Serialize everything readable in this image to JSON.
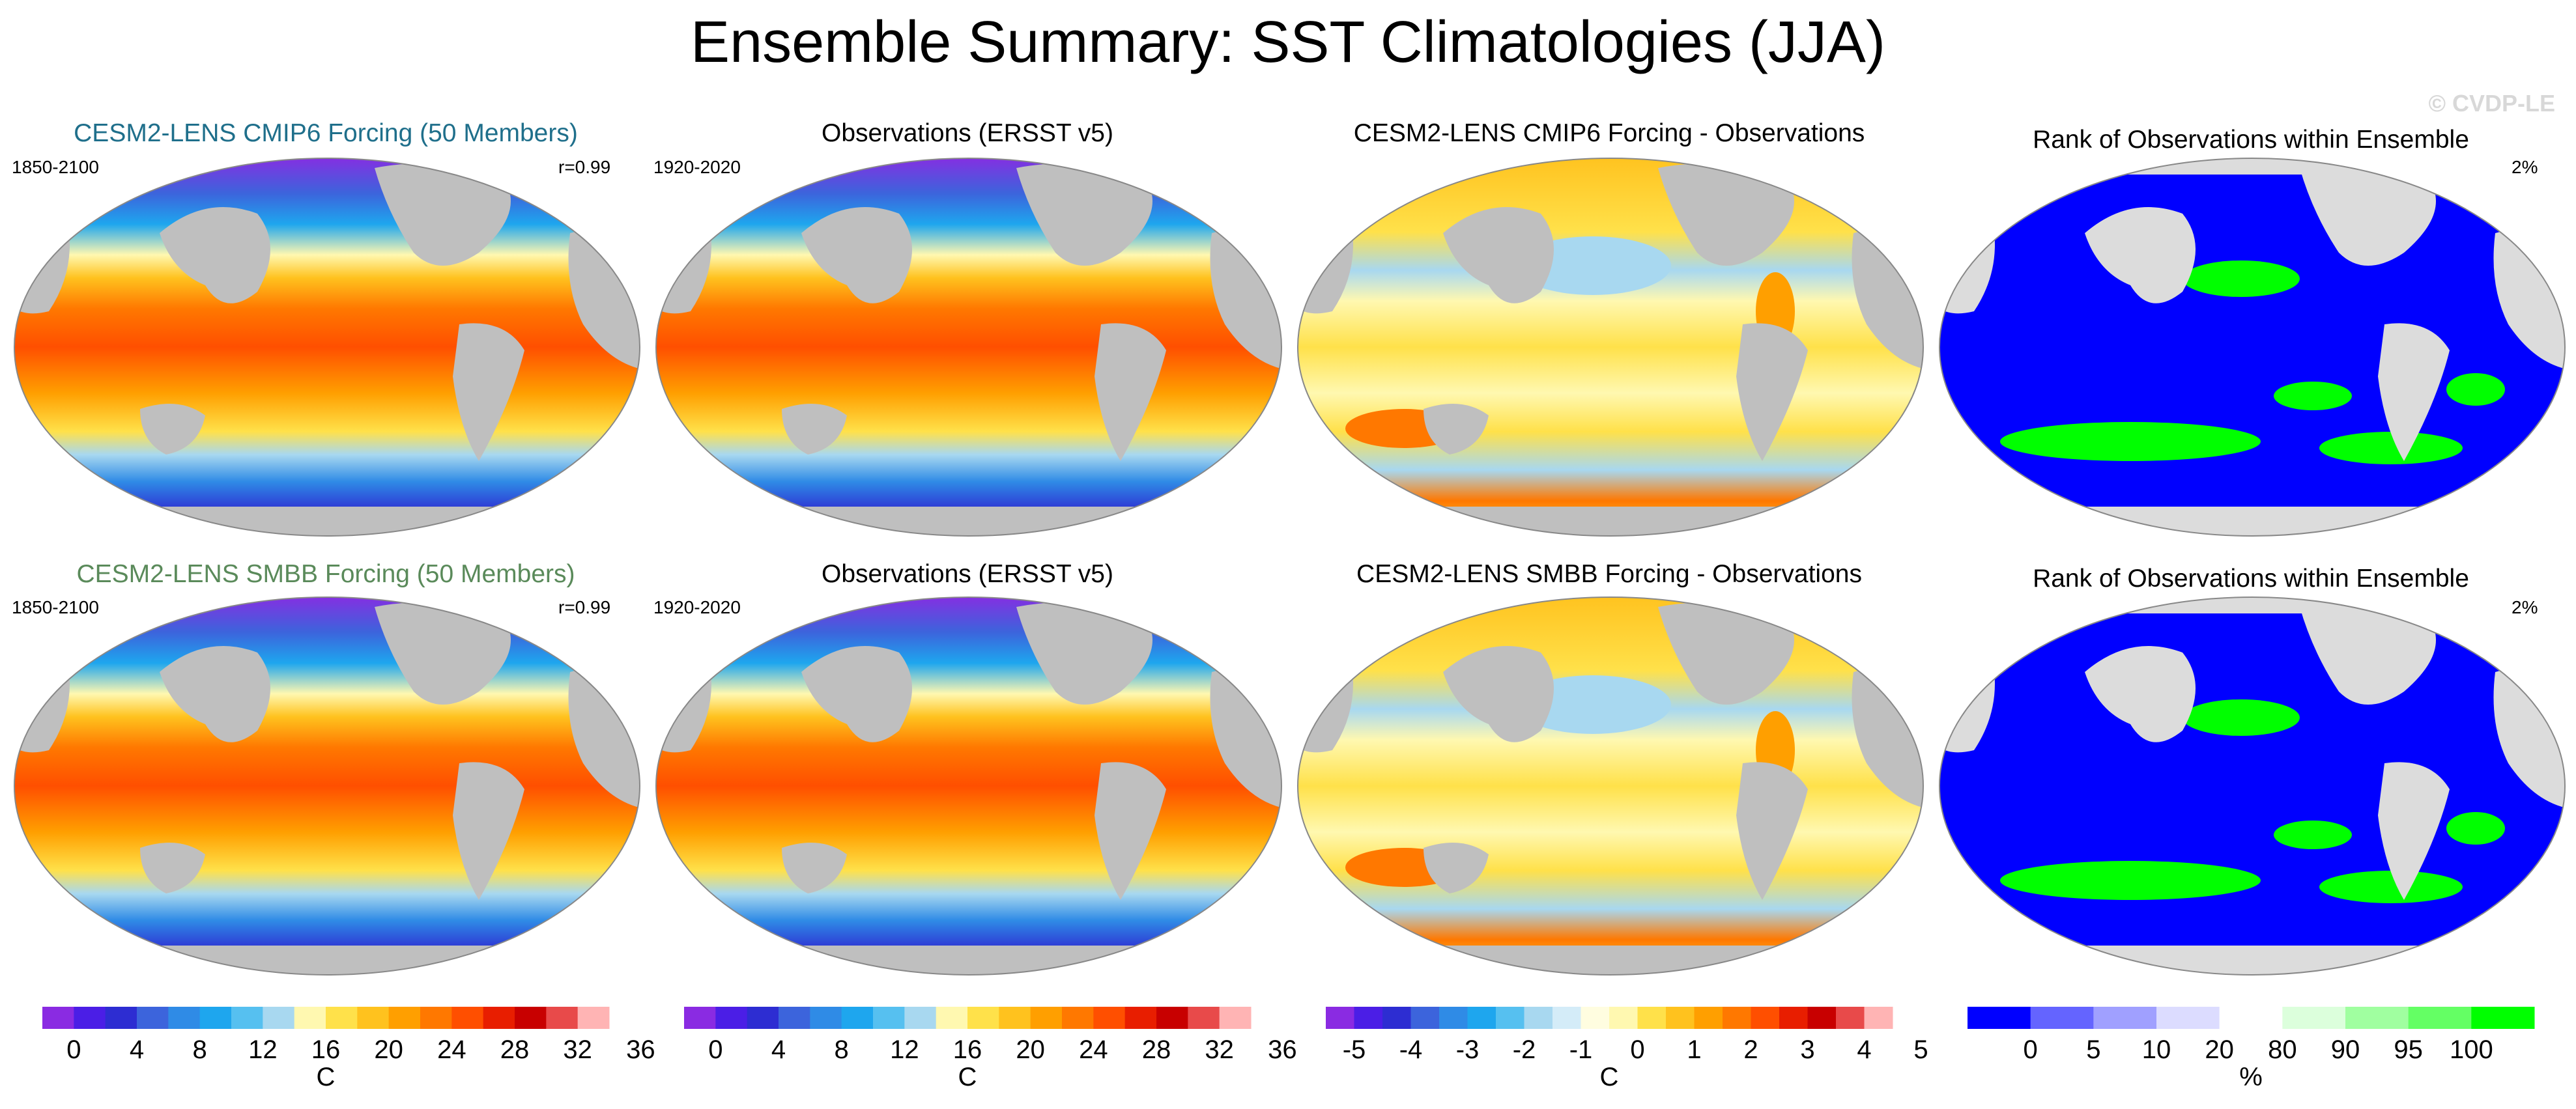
{
  "figure": {
    "title": "Ensemble Summary: SST Climatologies (JJA)",
    "watermark": "© CVDP-LE"
  },
  "colors": {
    "sst": [
      "#8a2be2",
      "#4b1ee6",
      "#2d2dd2",
      "#3c64dc",
      "#2f8be6",
      "#1ea6ee",
      "#56c0f0",
      "#a8d8f0",
      "#fff8b0",
      "#ffe14a",
      "#ffc21e",
      "#ff9f00",
      "#ff7800",
      "#ff4f00",
      "#e81e00",
      "#c80000",
      "#e84a4a",
      "#ffb4b4"
    ],
    "diff": [
      "#8a2be2",
      "#4b1ee6",
      "#2d2dd2",
      "#3c64dc",
      "#2f8be6",
      "#1ea6ee",
      "#56c0f0",
      "#a8d8f0",
      "#d4ecf8",
      "#fffde0",
      "#fff8b0",
      "#ffe14a",
      "#ffc21e",
      "#ff9f00",
      "#ff7800",
      "#ff4f00",
      "#e81e00",
      "#c80000",
      "#e84a4a",
      "#ffb4b4"
    ],
    "rank": [
      "#0000ff",
      "#6464ff",
      "#a0a0ff",
      "#dcdcff",
      "#ffffff",
      "#dcffdc",
      "#a0ffa0",
      "#64ff64",
      "#00ff00"
    ],
    "land": "#bfbfbf",
    "land_light": "#dcdcdc",
    "title_cmip6": "#1f6f8b",
    "title_smbb": "#5a8a5a"
  },
  "rows": [
    {
      "model_title": "CESM2-LENS CMIP6 Forcing (50 Members)",
      "model_years": "1850-2100",
      "pattern_corr": "r=0.99",
      "obs_title": "Observations (ERSST v5)",
      "obs_years": "1920-2020",
      "diff_title": "CESM2-LENS CMIP6 Forcing - Observations",
      "rank_title": "Rank of Observations within Ensemble",
      "rank_pct": "2%"
    },
    {
      "model_title": "CESM2-LENS SMBB Forcing (50 Members)",
      "model_years": "1850-2100",
      "pattern_corr": "r=0.99",
      "obs_title": "Observations (ERSST v5)",
      "obs_years": "1920-2020",
      "diff_title": "CESM2-LENS SMBB Forcing - Observations",
      "rank_title": "Rank of Observations within Ensemble",
      "rank_pct": "2%"
    }
  ],
  "chart_data": [
    {
      "type": "heatmap",
      "name": "model_climatology_colorbar",
      "variable": "SST climatology (JJA)",
      "units": "C",
      "levels": [
        -2,
        0,
        2,
        4,
        6,
        8,
        10,
        12,
        14,
        16,
        18,
        20,
        22,
        24,
        26,
        28,
        30,
        32,
        34,
        36
      ],
      "tick_labels": [
        "0",
        "4",
        "8",
        "12",
        "16",
        "20",
        "24",
        "28",
        "32",
        "36"
      ],
      "tick_values": [
        0,
        4,
        8,
        12,
        16,
        20,
        24,
        28,
        32,
        36
      ]
    },
    {
      "type": "heatmap",
      "name": "observations_colorbar",
      "variable": "SST climatology (JJA)",
      "units": "C",
      "levels": [
        -2,
        0,
        2,
        4,
        6,
        8,
        10,
        12,
        14,
        16,
        18,
        20,
        22,
        24,
        26,
        28,
        30,
        32,
        34,
        36
      ],
      "tick_labels": [
        "0",
        "4",
        "8",
        "12",
        "16",
        "20",
        "24",
        "28",
        "32",
        "36"
      ],
      "tick_values": [
        0,
        4,
        8,
        12,
        16,
        20,
        24,
        28,
        32,
        36
      ]
    },
    {
      "type": "heatmap",
      "name": "difference_colorbar",
      "variable": "Model - Observations",
      "units": "C",
      "levels": [
        -5.5,
        -5,
        -4.5,
        -4,
        -3.5,
        -3,
        -2.5,
        -2,
        -1.5,
        -1,
        -0.5,
        0,
        0.5,
        1,
        1.5,
        2,
        2.5,
        3,
        3.5,
        4,
        4.5,
        5,
        5.5
      ],
      "tick_labels": [
        "-5",
        "-4",
        "-3",
        "-2",
        "-1",
        "0",
        "1",
        "2",
        "3",
        "4",
        "5"
      ],
      "tick_values": [
        -5,
        -4,
        -3,
        -2,
        -1,
        0,
        1,
        2,
        3,
        4,
        5
      ]
    },
    {
      "type": "heatmap",
      "name": "rank_colorbar",
      "variable": "Rank of observations within ensemble",
      "units": "%",
      "tick_labels": [
        "0",
        "5",
        "10",
        "20",
        "80",
        "90",
        "95",
        "100"
      ],
      "tick_values": [
        0,
        5,
        10,
        20,
        80,
        90,
        95,
        100
      ]
    }
  ]
}
